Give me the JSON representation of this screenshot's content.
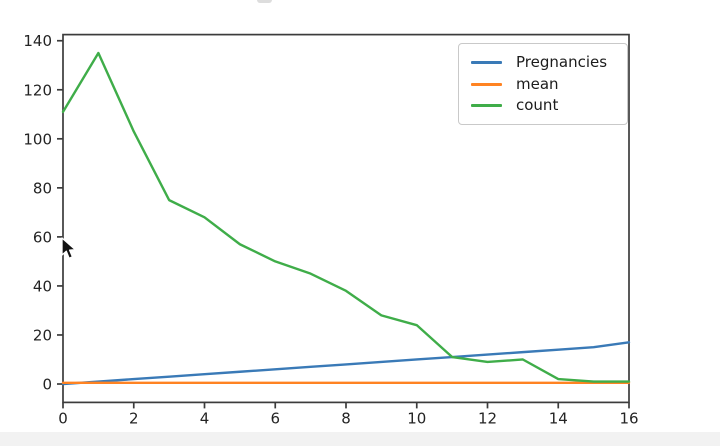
{
  "figure": {
    "background": "#ffffff",
    "footer_band_color": "#f2f2f2"
  },
  "icons": {
    "mouse-cursor": "arrow-pointer"
  },
  "chart_data": {
    "type": "line",
    "title": "",
    "xlabel": "",
    "ylabel": "",
    "x": [
      0,
      1,
      2,
      3,
      4,
      5,
      6,
      7,
      8,
      9,
      10,
      11,
      12,
      13,
      14,
      15,
      16
    ],
    "xticks": [
      0,
      2,
      4,
      6,
      8,
      10,
      12,
      14,
      16
    ],
    "yticks": [
      0,
      20,
      40,
      60,
      80,
      100,
      120,
      140
    ],
    "xlim": [
      0,
      16
    ],
    "ylim": [
      -7.5,
      142.5
    ],
    "grid": false,
    "legend_position": "upper right",
    "axis_color": "#3c3c3c",
    "tick_label_color": "#242424",
    "series": [
      {
        "name": "Pregnancies",
        "color": "#3a7ab7",
        "values": [
          0,
          1,
          2,
          3,
          4,
          5,
          6,
          7,
          8,
          9,
          10,
          11,
          12,
          13,
          14,
          15,
          17
        ]
      },
      {
        "name": "mean",
        "color": "#ff8322",
        "values": [
          0.5,
          0.5,
          0.5,
          0.5,
          0.5,
          0.5,
          0.5,
          0.5,
          0.5,
          0.5,
          0.5,
          0.5,
          0.5,
          0.5,
          0.5,
          0.5,
          0.5
        ]
      },
      {
        "name": "count",
        "color": "#3fad49",
        "values": [
          111,
          135,
          103,
          75,
          68,
          57,
          50,
          45,
          38,
          28,
          24,
          11,
          9,
          10,
          2,
          1,
          1
        ]
      }
    ]
  }
}
